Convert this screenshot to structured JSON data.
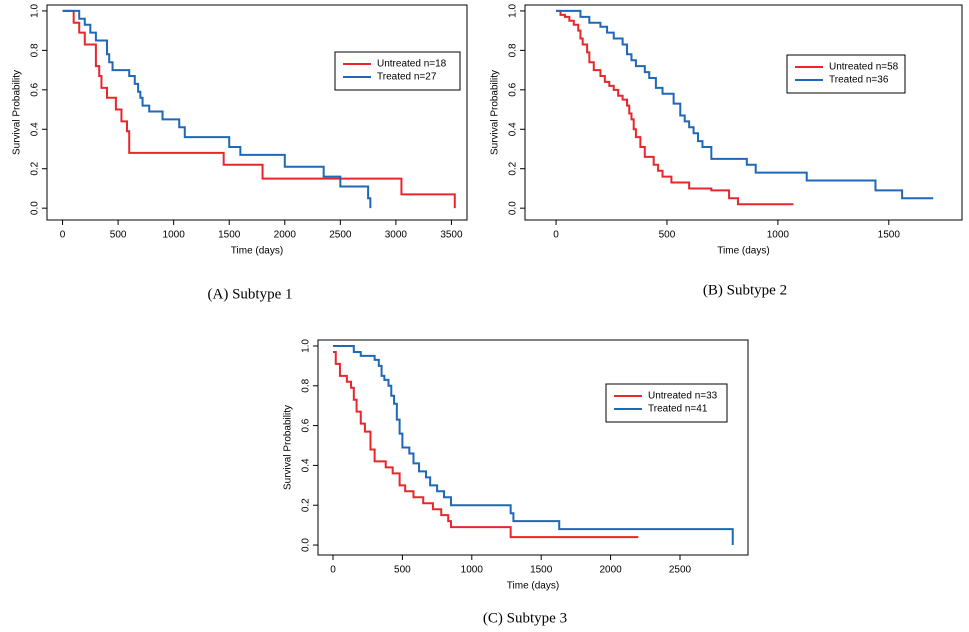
{
  "chart_data": [
    {
      "type": "line",
      "step": "post",
      "caption": "(A) Subtype 1",
      "xlabel": "Time (days)",
      "ylabel": "Survival Probability",
      "xlim": [
        -140,
        3640
      ],
      "ylim": [
        -0.06,
        1.03
      ],
      "xticks": [
        0,
        500,
        1000,
        1500,
        2000,
        2500,
        3000,
        3500
      ],
      "yticks": [
        {
          "value": 0,
          "label": "0.0"
        },
        0.2,
        0.4,
        0.6,
        0.8,
        {
          "value": 1,
          "label": "1.0"
        }
      ],
      "series": [
        {
          "name": "Untreated n=18",
          "color": "#e8262b",
          "x": [
            0,
            100,
            150,
            200,
            300,
            330,
            350,
            400,
            480,
            530,
            580,
            600,
            1450,
            1800,
            3050,
            3530
          ],
          "values": [
            1.0,
            0.94,
            0.89,
            0.83,
            0.72,
            0.67,
            0.61,
            0.56,
            0.5,
            0.44,
            0.39,
            0.28,
            0.22,
            0.15,
            0.07,
            0.0
          ]
        },
        {
          "name": "Treated n=27",
          "color": "#1f67b8",
          "x": [
            0,
            150,
            200,
            250,
            300,
            400,
            420,
            450,
            600,
            650,
            680,
            700,
            720,
            780,
            900,
            1050,
            1100,
            1500,
            1600,
            2000,
            2350,
            2500,
            2750,
            2770
          ],
          "values": [
            1.0,
            0.96,
            0.93,
            0.89,
            0.85,
            0.78,
            0.74,
            0.7,
            0.67,
            0.63,
            0.59,
            0.56,
            0.52,
            0.49,
            0.45,
            0.41,
            0.36,
            0.31,
            0.27,
            0.21,
            0.16,
            0.11,
            0.05,
            0.0
          ]
        }
      ]
    },
    {
      "type": "line",
      "step": "post",
      "caption": "(B) Subtype 2",
      "xlabel": "Time (days)",
      "ylabel": "Survival Probability",
      "xlim": [
        -140,
        1830
      ],
      "ylim": [
        -0.06,
        1.03
      ],
      "xticks": [
        0,
        500,
        1000,
        1500
      ],
      "yticks": [
        {
          "value": 0,
          "label": "0.0"
        },
        0.2,
        0.4,
        0.6,
        0.8,
        {
          "value": 1,
          "label": "1.0"
        }
      ],
      "series": [
        {
          "name": "Untreated n=58",
          "color": "#e8262b",
          "x": [
            0,
            20,
            40,
            60,
            80,
            100,
            110,
            120,
            140,
            150,
            170,
            200,
            220,
            240,
            260,
            280,
            300,
            320,
            330,
            340,
            350,
            360,
            380,
            400,
            440,
            460,
            480,
            520,
            600,
            700,
            780,
            820,
            1070
          ],
          "values": [
            1.0,
            0.98,
            0.97,
            0.95,
            0.93,
            0.9,
            0.86,
            0.83,
            0.79,
            0.74,
            0.7,
            0.67,
            0.64,
            0.62,
            0.6,
            0.57,
            0.55,
            0.52,
            0.48,
            0.45,
            0.4,
            0.36,
            0.31,
            0.26,
            0.22,
            0.19,
            0.16,
            0.13,
            0.1,
            0.09,
            0.05,
            0.02,
            0.02
          ]
        },
        {
          "name": "Treated n=36",
          "color": "#1f67b8",
          "x": [
            0,
            110,
            150,
            200,
            230,
            260,
            300,
            320,
            340,
            360,
            400,
            420,
            450,
            480,
            530,
            560,
            580,
            600,
            620,
            640,
            660,
            700,
            860,
            900,
            1130,
            1440,
            1560,
            1700
          ],
          "values": [
            1.0,
            0.97,
            0.94,
            0.92,
            0.89,
            0.86,
            0.83,
            0.78,
            0.75,
            0.72,
            0.69,
            0.66,
            0.61,
            0.58,
            0.53,
            0.47,
            0.44,
            0.41,
            0.38,
            0.34,
            0.31,
            0.25,
            0.22,
            0.18,
            0.14,
            0.09,
            0.05,
            0.05
          ]
        }
      ]
    },
    {
      "type": "line",
      "step": "post",
      "caption": "(C) Subtype 3",
      "xlabel": "Time (days)",
      "ylabel": "Survival Probability",
      "xlim": [
        -108,
        2990
      ],
      "ylim": [
        -0.05,
        1.03
      ],
      "xticks": [
        0,
        500,
        1000,
        1500,
        2000,
        2500
      ],
      "yticks": [
        {
          "value": 0,
          "label": "0.0"
        },
        0.2,
        0.4,
        0.6,
        0.8,
        {
          "value": 1,
          "label": "1.0"
        }
      ],
      "series": [
        {
          "name": "Untreated n=33",
          "color": "#e8262b",
          "x": [
            0,
            20,
            50,
            100,
            130,
            150,
            170,
            200,
            230,
            270,
            300,
            380,
            430,
            480,
            520,
            580,
            650,
            720,
            780,
            830,
            850,
            1280,
            2200
          ],
          "values": [
            0.97,
            0.91,
            0.85,
            0.82,
            0.79,
            0.73,
            0.67,
            0.61,
            0.57,
            0.48,
            0.42,
            0.39,
            0.36,
            0.3,
            0.27,
            0.24,
            0.21,
            0.18,
            0.15,
            0.12,
            0.09,
            0.04,
            0.04
          ]
        },
        {
          "name": "Treated n=41",
          "color": "#1f67b8",
          "x": [
            0,
            150,
            200,
            300,
            330,
            350,
            370,
            400,
            420,
            440,
            460,
            480,
            500,
            550,
            580,
            620,
            670,
            700,
            750,
            800,
            850,
            1280,
            1300,
            1630,
            2880,
            2880
          ],
          "values": [
            1.0,
            0.97,
            0.95,
            0.93,
            0.9,
            0.85,
            0.83,
            0.8,
            0.75,
            0.71,
            0.63,
            0.56,
            0.49,
            0.46,
            0.41,
            0.37,
            0.34,
            0.3,
            0.27,
            0.24,
            0.2,
            0.16,
            0.12,
            0.08,
            0.08,
            0.0
          ]
        }
      ]
    }
  ]
}
